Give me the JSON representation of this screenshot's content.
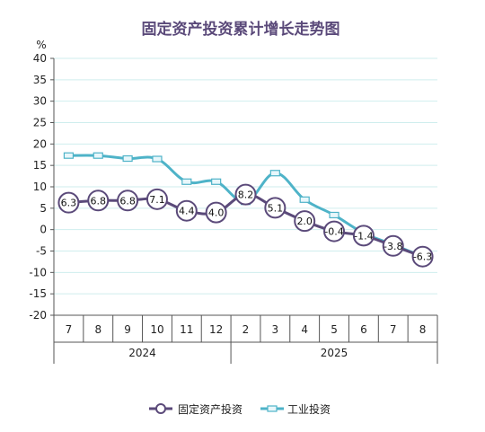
{
  "chart_data": {
    "type": "line",
    "title": "固定资产投资累计增长走势图",
    "y_unit": "%",
    "ylim": [
      -20,
      40
    ],
    "y_ticks": [
      40,
      35,
      30,
      25,
      20,
      15,
      10,
      5,
      0,
      -5,
      -10,
      -15,
      -20
    ],
    "categories": [
      "7",
      "8",
      "9",
      "10",
      "11",
      "12",
      "2",
      "3",
      "4",
      "5",
      "6",
      "7",
      "8"
    ],
    "year_groups": [
      {
        "label": "2024",
        "from": 0,
        "to": 5
      },
      {
        "label": "2025",
        "from": 6,
        "to": 12
      }
    ],
    "series": [
      {
        "name": "固定资产投资",
        "color": "#5b4a7a",
        "marker": "circle",
        "values": [
          6.3,
          6.8,
          6.8,
          7.1,
          4.4,
          4.0,
          8.2,
          5.1,
          2.0,
          -0.4,
          -1.4,
          -3.8,
          -6.3
        ],
        "labels": [
          "6.3",
          "6.8",
          "6.8",
          "7.1",
          "4.4",
          "4.0",
          "8.2",
          "5.1",
          "2.0",
          "-0.4",
          "-1.4",
          "-3.8",
          "-6.3"
        ]
      },
      {
        "name": "工业投资",
        "color": "#4eb3c8",
        "marker": "square",
        "values": [
          17.3,
          17.3,
          16.6,
          16.5,
          11.2,
          11.2,
          6.5,
          13.2,
          7.0,
          3.4,
          -0.8,
          -3.5,
          -6.3
        ]
      }
    ],
    "grid": true,
    "legend_position": "bottom"
  }
}
